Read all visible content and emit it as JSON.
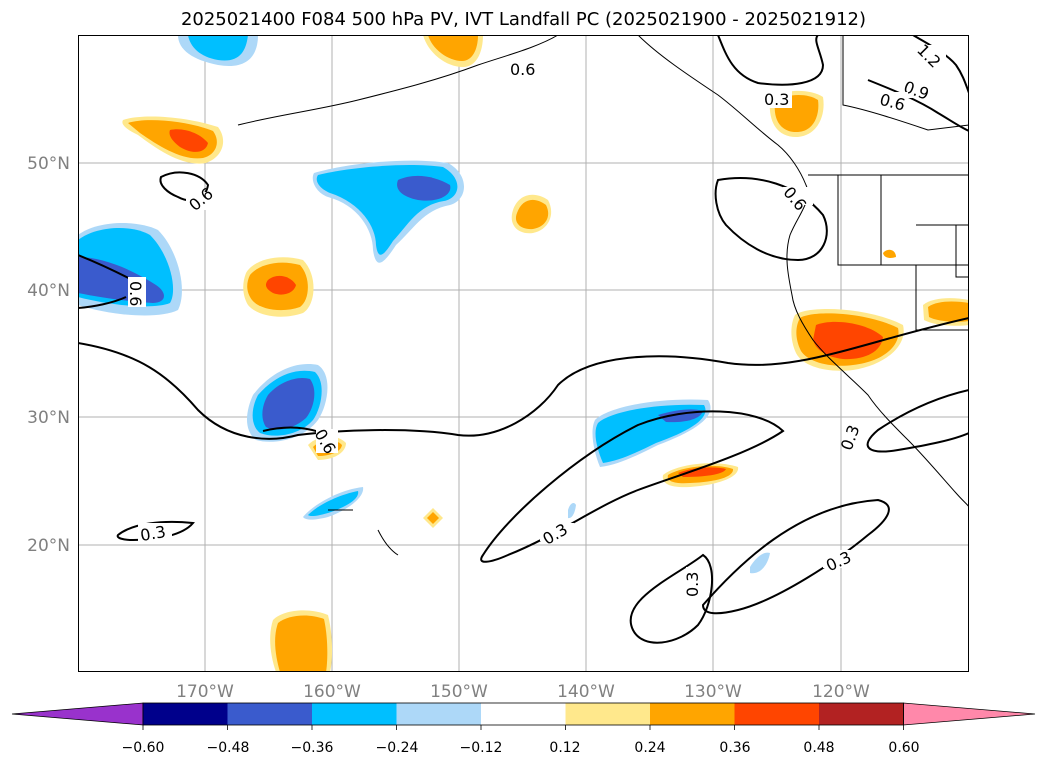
{
  "title": "2025021400 F084 500 hPa PV, IVT Landfall PC (2025021900 - 2025021912)",
  "map": {
    "lon_labels": [
      "170°W",
      "160°W",
      "150°W",
      "140°W",
      "130°W",
      "120°W"
    ],
    "lat_labels": [
      "50°N",
      "40°N",
      "30°N",
      "20°N"
    ],
    "contour_labels": [
      "0.6",
      "1.2",
      "0.9",
      "0.6",
      "0.3",
      "0.6",
      "0.6",
      "0.6",
      "0.6",
      "0.3",
      "0.3",
      "0.3",
      "0.3",
      "0.3"
    ]
  },
  "colorbar": {
    "ticks": [
      "−0.60",
      "−0.48",
      "−0.36",
      "−0.24",
      "−0.12",
      "0.12",
      "0.24",
      "0.36",
      "0.48",
      "0.60"
    ],
    "colors": [
      "#9932cc",
      "#00008b",
      "#3a5bcd",
      "#00bfff",
      "#add8f8",
      "#ffffff",
      "#ffe88c",
      "#ffa500",
      "#ff4500",
      "#b22222",
      "#ff88aa"
    ]
  }
}
